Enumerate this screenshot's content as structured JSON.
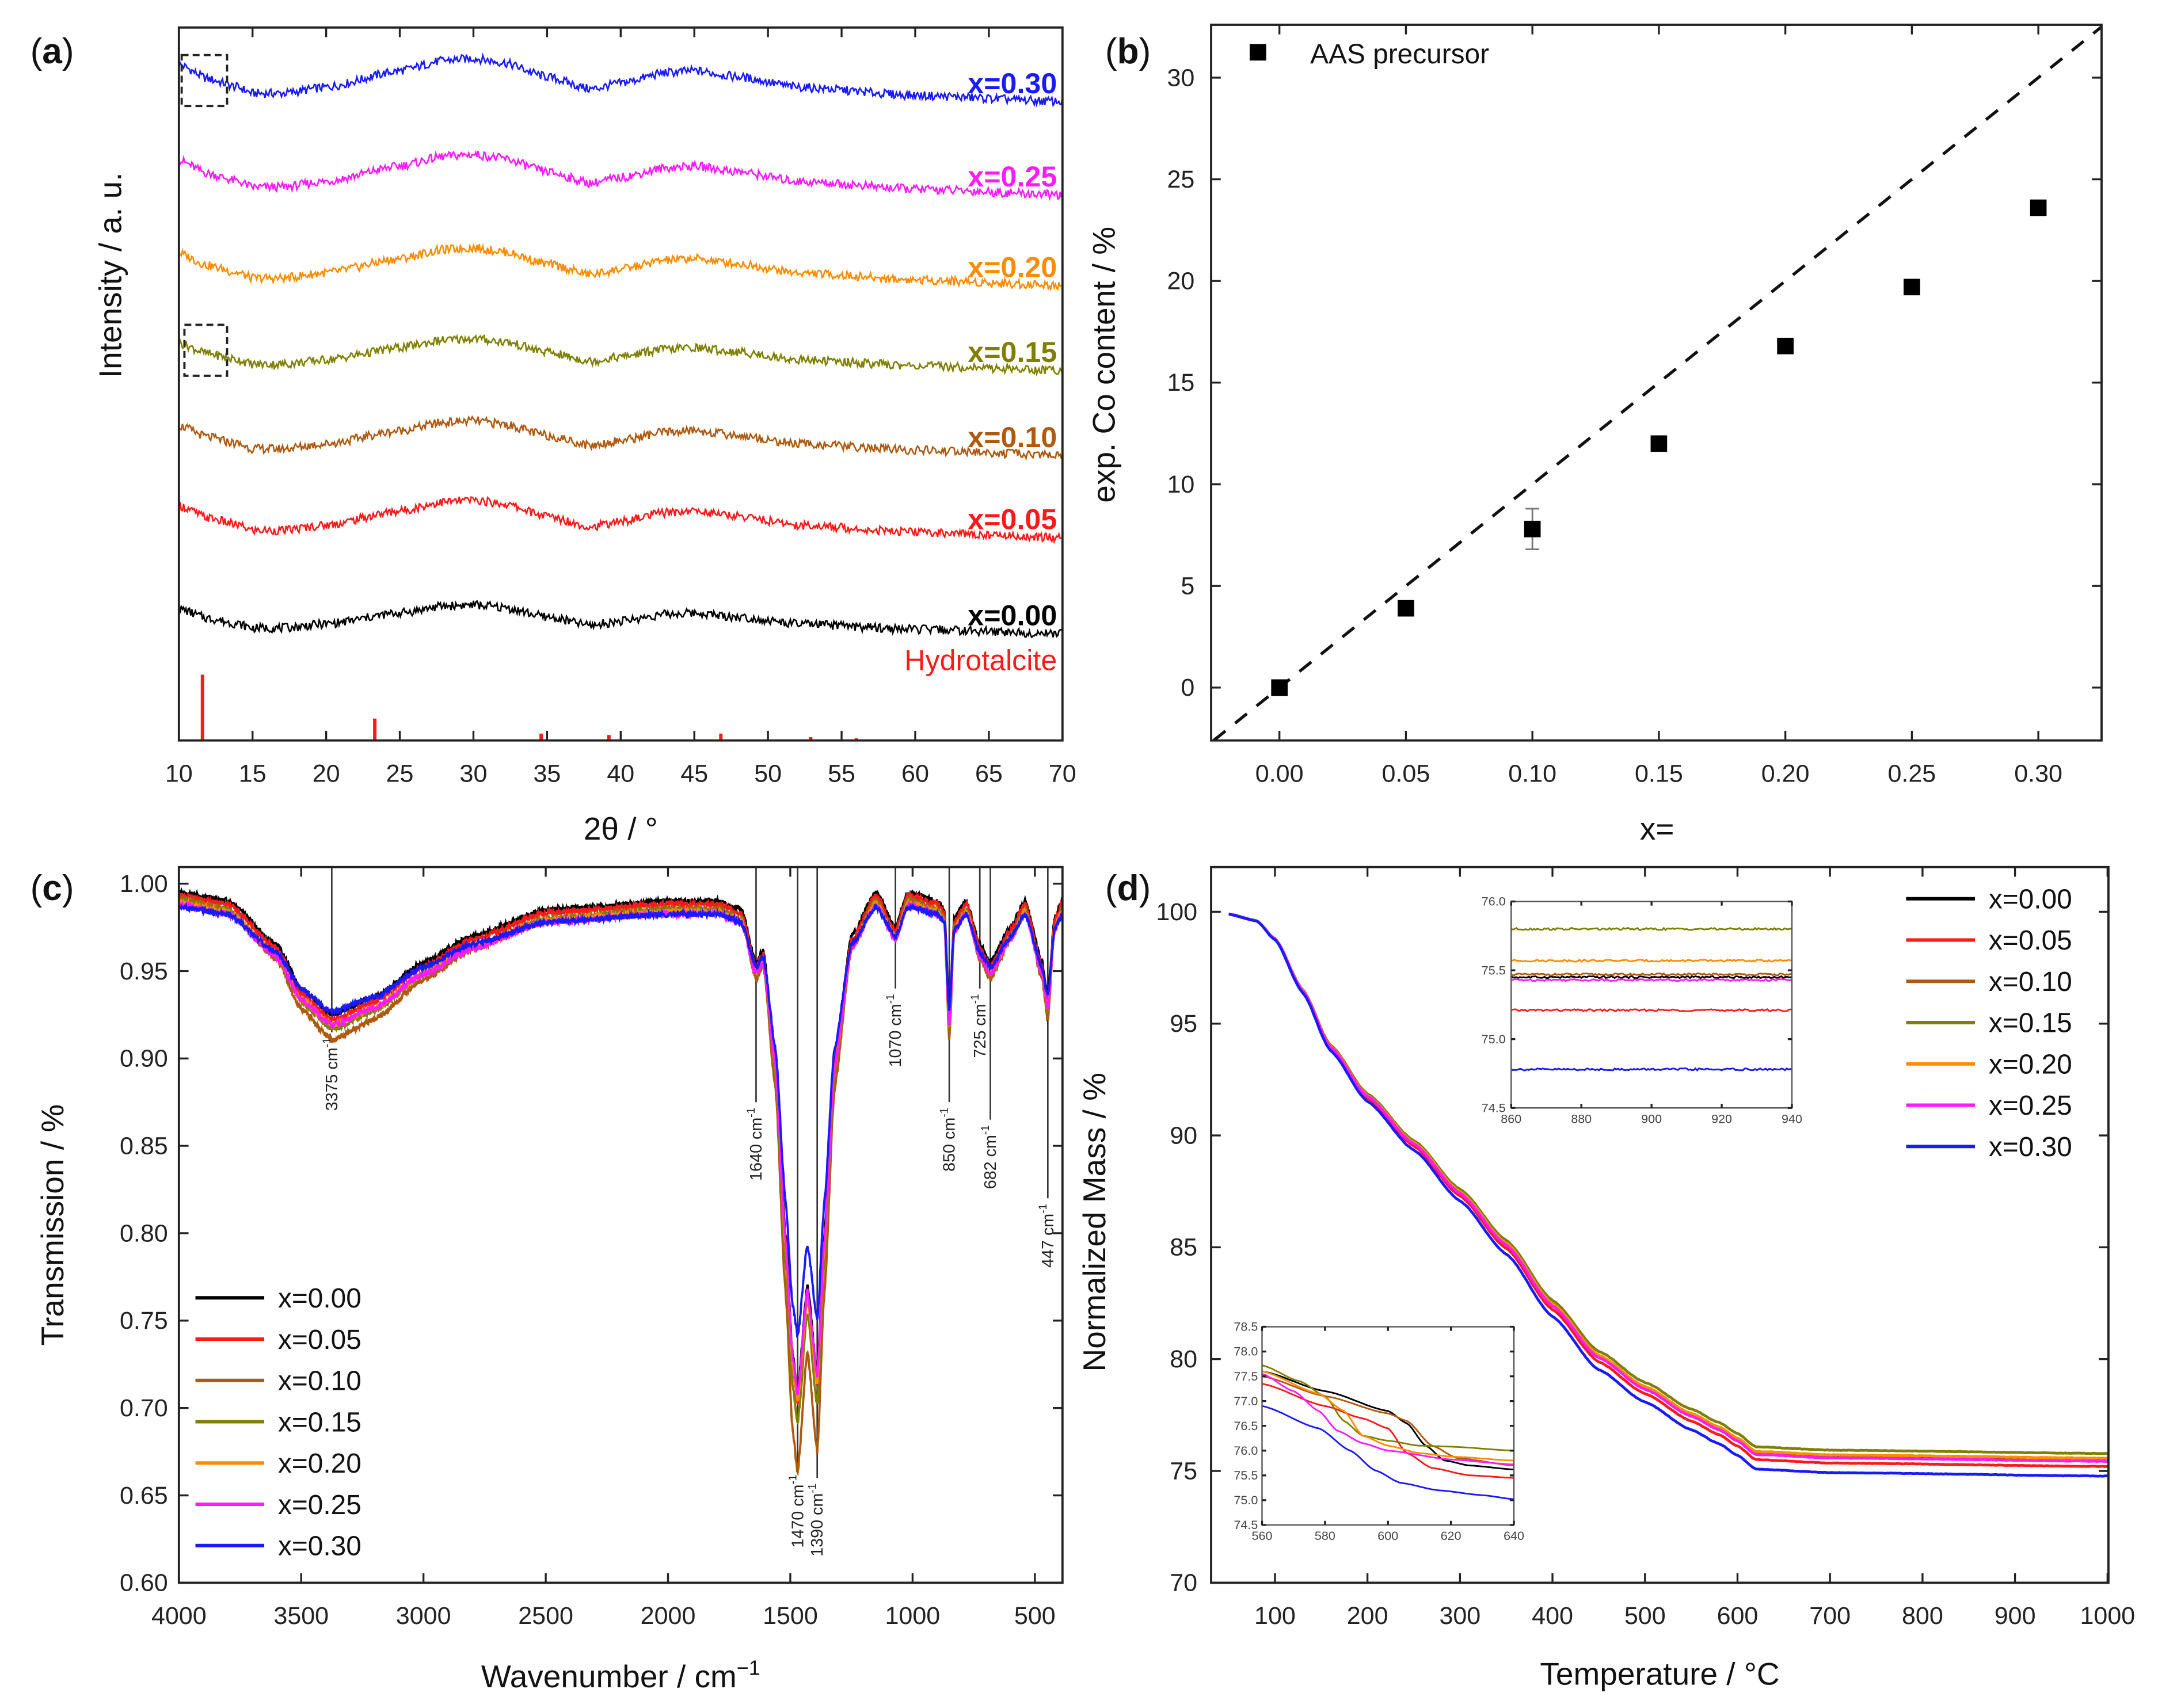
{
  "panels": {
    "a": "a",
    "b": "b",
    "c": "c",
    "d": "d"
  },
  "chart_data": [
    {
      "id": "a",
      "type": "line",
      "xlabel": "2θ / °",
      "ylabel": "Intensity / a. u.",
      "xlim": [
        10,
        70
      ],
      "ylim": [
        0,
        26
      ],
      "xticks": [
        10,
        15,
        20,
        25,
        30,
        35,
        40,
        45,
        50,
        55,
        60,
        65,
        70
      ],
      "profile": {
        "x": [
          10,
          12,
          14,
          15,
          17,
          20,
          25,
          28,
          30,
          32,
          35,
          38,
          40,
          43,
          45,
          48,
          52,
          60,
          70
        ],
        "y": [
          0.9,
          0.55,
          0.35,
          0.2,
          0.2,
          0.35,
          0.75,
          1.0,
          1.05,
          0.95,
          0.6,
          0.3,
          0.45,
          0.7,
          0.75,
          0.6,
          0.35,
          0.15,
          0.0
        ]
      },
      "series": [
        {
          "name": "x=0.30",
          "color": "#1a1aff",
          "offset": 23.3,
          "amp": 1.5
        },
        {
          "name": "x=0.25",
          "color": "#ff1aff",
          "offset": 19.9,
          "amp": 1.4
        },
        {
          "name": "x=0.20",
          "color": "#ff8c00",
          "offset": 16.6,
          "amp": 1.3
        },
        {
          "name": "x=0.15",
          "color": "#808000",
          "offset": 13.5,
          "amp": 1.1
        },
        {
          "name": "x=0.10",
          "color": "#b05a10",
          "offset": 10.4,
          "amp": 1.2
        },
        {
          "name": "x=0.05",
          "color": "#ff1a1a",
          "offset": 7.4,
          "amp": 1.3
        },
        {
          "name": "x=0.00",
          "color": "#000000",
          "offset": 3.9,
          "amp": 1.0
        }
      ],
      "reference": {
        "name": "Hydrotalcite",
        "color": "#ff1a1a",
        "x": [
          11.6,
          23.3,
          34.6,
          39.2,
          46.8,
          52.9,
          56.0
        ],
        "y": [
          2.4,
          0.8,
          0.25,
          0.2,
          0.25,
          0.12,
          0.08
        ]
      }
    },
    {
      "id": "b",
      "type": "scatter",
      "xlabel": "x=",
      "ylabel": "exp. Co content / %",
      "xlim": [
        -0.027,
        0.325
      ],
      "ylim": [
        -2.6,
        32.6
      ],
      "xticks": [
        0.0,
        0.05,
        0.1,
        0.15,
        0.2,
        0.25,
        0.3
      ],
      "yticks": [
        0,
        5,
        10,
        15,
        20,
        25,
        30
      ],
      "legend": "AAS precursor",
      "x": [
        0.0,
        0.05,
        0.1,
        0.15,
        0.2,
        0.25,
        0.3
      ],
      "y": [
        0.0,
        3.9,
        7.8,
        12.0,
        16.8,
        19.7,
        23.6
      ],
      "yerr": [
        0,
        0,
        1.0,
        0,
        0,
        0,
        0
      ],
      "reference_line": {
        "slope": 100,
        "intercept": 0,
        "style": "dashed"
      }
    },
    {
      "id": "c",
      "type": "line",
      "xlabel": "Wavenumber / cm",
      "xlabel_sup": "−1",
      "ylabel": "Transmission / %",
      "xlim": [
        4000,
        387
      ],
      "ylim": [
        0.6,
        1.0095
      ],
      "xticks": [
        4000,
        3500,
        3000,
        2500,
        2000,
        1500,
        1000,
        500
      ],
      "yticks": [
        0.6,
        0.65,
        0.7,
        0.75,
        0.8,
        0.85,
        0.9,
        0.95,
        1.0
      ],
      "base": {
        "x": [
          4000,
          3800,
          3600,
          3500,
          3375,
          3200,
          3000,
          2800,
          2500,
          2000,
          1800,
          1700,
          1640,
          1610,
          1560,
          1520,
          1490,
          1470,
          1430,
          1390,
          1360,
          1320,
          1250,
          1150,
          1070,
          1020,
          900,
          870,
          850,
          830,
          780,
          725,
          682,
          600,
          540,
          470,
          447,
          420,
          390
        ],
        "y": [
          0.995,
          0.99,
          0.965,
          0.94,
          0.925,
          0.935,
          0.955,
          0.97,
          0.985,
          0.99,
          0.99,
          0.985,
          0.955,
          0.962,
          0.9,
          0.8,
          0.73,
          0.71,
          0.77,
          0.72,
          0.8,
          0.9,
          0.97,
          0.995,
          0.975,
          0.995,
          0.99,
          0.985,
          0.925,
          0.98,
          0.99,
          0.965,
          0.955,
          0.975,
          0.99,
          0.955,
          0.935,
          0.98,
          0.99
        ]
      },
      "series": [
        {
          "name": "x=0.00",
          "color": "#000000",
          "depth": 1.0
        },
        {
          "name": "x=0.05",
          "color": "#ff1a1a",
          "depth": 1.02
        },
        {
          "name": "x=0.10",
          "color": "#b05a10",
          "depth": 1.15
        },
        {
          "name": "x=0.15",
          "color": "#808000",
          "depth": 1.05
        },
        {
          "name": "x=0.20",
          "color": "#ff8c00",
          "depth": 1.0
        },
        {
          "name": "x=0.25",
          "color": "#ff1aff",
          "depth": 0.98
        },
        {
          "name": "x=0.30",
          "color": "#1a1aff",
          "depth": 0.86
        }
      ],
      "annotations": [
        {
          "wn": 3375,
          "label": "3375 cm",
          "end": 0.915
        },
        {
          "wn": 1640,
          "label": "1640 cm",
          "end": 0.875
        },
        {
          "wn": 1470,
          "label": "1470 cm",
          "end": 0.665
        },
        {
          "wn": 1390,
          "label": "1390 cm",
          "end": 0.66
        },
        {
          "wn": 1070,
          "label": "1070 cm",
          "end": 0.94
        },
        {
          "wn": 850,
          "label": "850 cm",
          "end": 0.875
        },
        {
          "wn": 725,
          "label": "725 cm",
          "end": 0.94
        },
        {
          "wn": 682,
          "label": "682 cm",
          "end": 0.865
        },
        {
          "wn": 447,
          "label": "447 cm",
          "end": 0.82
        }
      ],
      "annotation_sup": "-1",
      "legend_position": "bottom-left"
    },
    {
      "id": "d",
      "type": "line",
      "xlabel": "Temperature / °C",
      "ylabel": "Normalized Mass / %",
      "xlim": [
        31,
        1001
      ],
      "ylim": [
        70,
        102
      ],
      "xticks": [
        100,
        200,
        300,
        400,
        500,
        600,
        700,
        800,
        900,
        1000
      ],
      "yticks": [
        70,
        75,
        80,
        85,
        90,
        95,
        100
      ],
      "base": {
        "x": [
          50,
          80,
          100,
          130,
          160,
          200,
          250,
          300,
          350,
          400,
          450,
          500,
          550,
          580,
          600,
          620,
          700,
          1000
        ],
        "y": [
          99.9,
          99.6,
          98.8,
          96.5,
          94.0,
          91.8,
          89.7,
          87.5,
          85.2,
          82.5,
          80.2,
          78.8,
          77.6,
          77.0,
          76.5,
          75.9,
          75.75,
          75.6
        ]
      },
      "series": [
        {
          "name": "x=0.00",
          "color": "#000000",
          "final": 75.45
        },
        {
          "name": "x=0.05",
          "color": "#ff1a1a",
          "final": 75.2
        },
        {
          "name": "x=0.10",
          "color": "#b05a10",
          "final": 75.45
        },
        {
          "name": "x=0.15",
          "color": "#808000",
          "final": 75.78
        },
        {
          "name": "x=0.20",
          "color": "#ff8c00",
          "final": 75.57
        },
        {
          "name": "x=0.25",
          "color": "#ff1aff",
          "final": 75.43
        },
        {
          "name": "x=0.30",
          "color": "#1a1aff",
          "final": 74.77
        }
      ],
      "legend_position": "top-right",
      "inset_high": {
        "xlim": [
          860,
          940
        ],
        "ylim": [
          74.5,
          76.0
        ],
        "xticks": [
          860,
          880,
          900,
          920,
          940
        ],
        "yticks": [
          74.5,
          75.0,
          75.5,
          76.0
        ],
        "values": [
          75.45,
          75.21,
          75.47,
          75.8,
          75.57,
          75.43,
          74.78
        ]
      },
      "inset_low": {
        "xlim": [
          560,
          640
        ],
        "ylim": [
          74.5,
          78.5
        ],
        "xticks": [
          560,
          580,
          600,
          620,
          640
        ],
        "yticks": [
          74.5,
          75.0,
          75.5,
          76.0,
          76.5,
          77.0,
          77.5,
          78.0,
          78.5
        ],
        "curves": [
          {
            "x": [
              560,
              580,
              600,
              606,
              612,
              618,
              626,
              640
            ],
            "y": [
              77.6,
              77.2,
              76.8,
              76.55,
              76.1,
              75.8,
              75.7,
              75.62
            ]
          },
          {
            "x": [
              560,
              580,
              592,
              600,
              606,
              614,
              626,
              640
            ],
            "y": [
              77.35,
              76.9,
              76.65,
              76.45,
              75.95,
              75.65,
              75.5,
              75.45
            ]
          },
          {
            "x": [
              560,
              580,
              600,
              606,
              614,
              622,
              640
            ],
            "y": [
              77.5,
              77.1,
              76.75,
              76.6,
              76.1,
              75.85,
              75.7
            ]
          },
          {
            "x": [
              560,
              572,
              580,
              586,
              592,
              600,
              610,
              620,
              640
            ],
            "y": [
              77.72,
              77.4,
              77.1,
              76.6,
              76.3,
              76.2,
              76.1,
              76.08,
              76.0
            ]
          },
          {
            "x": [
              560,
              578,
              586,
              592,
              600,
              610,
              620,
              640
            ],
            "y": [
              77.6,
              77.15,
              76.8,
              76.3,
              76.1,
              75.95,
              75.88,
              75.8
            ]
          },
          {
            "x": [
              560,
              570,
              578,
              584,
              592,
              600,
              620,
              640
            ],
            "y": [
              77.55,
              77.2,
              76.8,
              76.4,
              76.15,
              76.0,
              75.82,
              75.72
            ]
          },
          {
            "x": [
              560,
              578,
              588,
              596,
              604,
              616,
              630,
              640
            ],
            "y": [
              76.9,
              76.45,
              76.0,
              75.6,
              75.35,
              75.2,
              75.1,
              75.02
            ]
          }
        ]
      }
    }
  ]
}
